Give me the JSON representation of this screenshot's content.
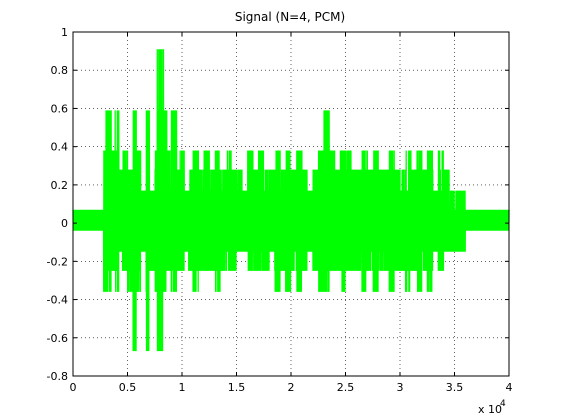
{
  "chart_data": {
    "type": "line",
    "title": "Signal (N=4, PCM)",
    "xlabel": "",
    "ylabel": "",
    "xlim": [
      0,
      40000
    ],
    "ylim": [
      -0.8,
      1.0
    ],
    "x_tick_labels": [
      "0",
      "0.5",
      "1",
      "1.5",
      "2",
      "2.5",
      "3",
      "3.5",
      "4"
    ],
    "x_tick_values": [
      0,
      5000,
      10000,
      15000,
      20000,
      25000,
      30000,
      35000,
      40000
    ],
    "x_multiplier_base": "x 10",
    "x_multiplier_exp": "4",
    "y_tick_labels": [
      "-0.8",
      "-0.6",
      "-0.4",
      "-0.2",
      "0",
      "0.2",
      "0.4",
      "0.6",
      "0.8",
      "1"
    ],
    "y_tick_values": [
      -0.8,
      -0.6,
      -0.4,
      -0.2,
      0,
      0.2,
      0.4,
      0.6,
      0.8,
      1.0
    ],
    "grid": true,
    "grid_style": "dotted",
    "series": [
      {
        "color": "#00ff00",
        "quantization_levels": [
          -0.67,
          -0.36,
          -0.25,
          -0.15,
          -0.04,
          0.07,
          0.17,
          0.28,
          0.38,
          0.59,
          0.91
        ],
        "envelope_x": [
          0,
          2500,
          2800,
          3000,
          3500,
          3800,
          4200,
          4500,
          5000,
          5500,
          5800,
          6200,
          6700,
          7000,
          7500,
          7700,
          8000,
          8300,
          8600,
          9000,
          9500,
          9800,
          10200,
          10600,
          11000,
          11500,
          12000,
          12500,
          13000,
          13500,
          14000,
          14500,
          15000,
          15500,
          16000,
          16500,
          17000,
          17500,
          18000,
          18500,
          19000,
          19500,
          20000,
          20500,
          21000,
          21500,
          22000,
          22500,
          23000,
          23500,
          24000,
          24500,
          25000,
          25500,
          26000,
          26500,
          27000,
          27500,
          28000,
          28500,
          29000,
          29500,
          30000,
          30500,
          31000,
          31500,
          32000,
          32500,
          33000,
          33500,
          34000,
          34500,
          35000,
          35500,
          36000,
          37000,
          38000,
          40000
        ],
        "envelope_top": [
          0.07,
          0.07,
          0.38,
          0.59,
          0.38,
          0.59,
          0.28,
          0.38,
          0.28,
          0.59,
          0.38,
          0.17,
          0.59,
          0.17,
          0.38,
          0.91,
          0.91,
          0.59,
          0.38,
          0.59,
          0.28,
          0.38,
          0.17,
          0.28,
          0.38,
          0.28,
          0.38,
          0.28,
          0.38,
          0.28,
          0.38,
          0.28,
          0.28,
          0.17,
          0.38,
          0.28,
          0.38,
          0.28,
          0.28,
          0.38,
          0.28,
          0.38,
          0.28,
          0.38,
          0.28,
          0.17,
          0.28,
          0.38,
          0.59,
          0.38,
          0.28,
          0.38,
          0.38,
          0.28,
          0.28,
          0.38,
          0.28,
          0.38,
          0.28,
          0.28,
          0.38,
          0.28,
          0.28,
          0.38,
          0.28,
          0.38,
          0.28,
          0.38,
          0.17,
          0.38,
          0.28,
          0.17,
          0.17,
          0.17,
          0.07,
          0.07,
          0.07,
          0.07
        ],
        "envelope_bottom": [
          -0.04,
          -0.04,
          -0.36,
          -0.36,
          -0.25,
          -0.36,
          -0.15,
          -0.25,
          -0.36,
          -0.67,
          -0.36,
          -0.15,
          -0.67,
          -0.25,
          -0.36,
          -0.67,
          -0.67,
          -0.36,
          -0.25,
          -0.36,
          -0.25,
          -0.25,
          -0.15,
          -0.25,
          -0.36,
          -0.25,
          -0.25,
          -0.25,
          -0.36,
          -0.25,
          -0.25,
          -0.25,
          -0.15,
          -0.15,
          -0.25,
          -0.25,
          -0.25,
          -0.25,
          -0.15,
          -0.36,
          -0.25,
          -0.36,
          -0.25,
          -0.36,
          -0.25,
          -0.15,
          -0.25,
          -0.36,
          -0.36,
          -0.25,
          -0.25,
          -0.36,
          -0.25,
          -0.25,
          -0.25,
          -0.36,
          -0.25,
          -0.36,
          -0.25,
          -0.25,
          -0.36,
          -0.25,
          -0.25,
          -0.36,
          -0.25,
          -0.36,
          -0.25,
          -0.36,
          -0.15,
          -0.25,
          -0.15,
          -0.15,
          -0.15,
          -0.15,
          -0.04,
          -0.04,
          -0.04,
          -0.04
        ]
      }
    ]
  }
}
